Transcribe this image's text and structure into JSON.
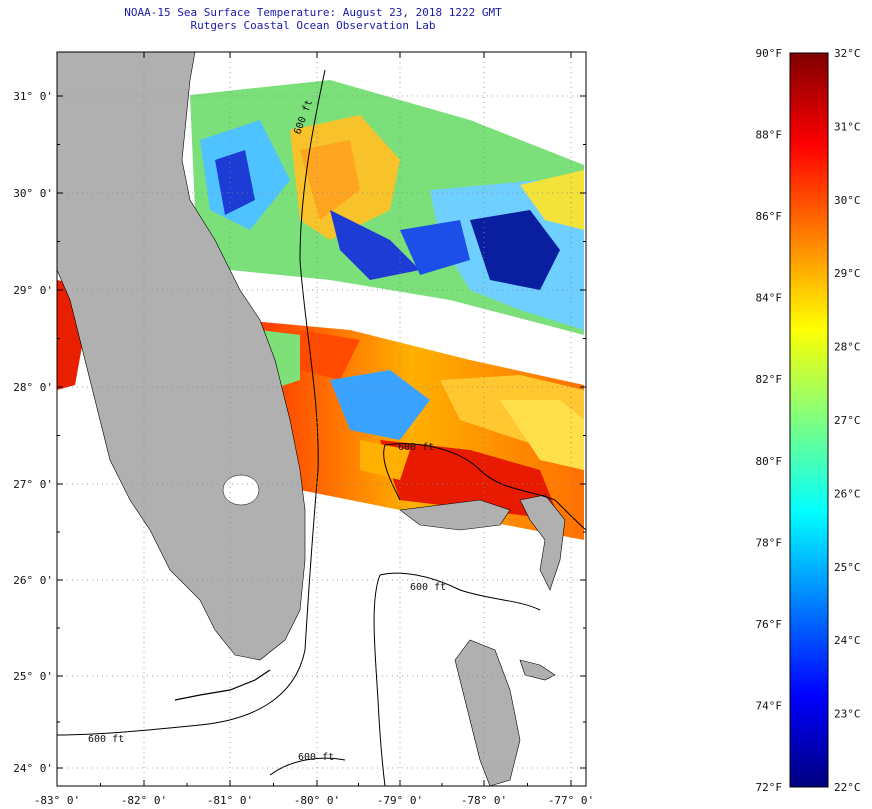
{
  "header": {
    "title": "NOAA-15 Sea Surface Temperature:  August 23, 2018 1222 GMT",
    "subtitle": "Rutgers Coastal Ocean Observation Lab"
  },
  "map": {
    "lat_ticks": [
      "31° 0'",
      "30° 0'",
      "29° 0'",
      "28° 0'",
      "27° 0'",
      "26° 0'",
      "25° 0'",
      "24° 0'"
    ],
    "lon_ticks": [
      "-83° 0'",
      "-82° 0'",
      "-81° 0'",
      "-80° 0'",
      "-79° 0'",
      "-78° 0'",
      "-77° 0'"
    ],
    "contour_labels": [
      "600 ft",
      "600 ft",
      "600 ft",
      "600 ft",
      "600 ft"
    ],
    "colors": {
      "land": "#b0b0b0",
      "nodata": "#ffffff",
      "frame": "#000000",
      "grid": "#888888"
    }
  },
  "colorbar": {
    "fahrenheit_labels": [
      "90°F",
      "88°F",
      "86°F",
      "84°F",
      "82°F",
      "80°F",
      "78°F",
      "76°F",
      "74°F",
      "72°F"
    ],
    "celsius_labels": [
      "32°C",
      "31°C",
      "30°C",
      "29°C",
      "28°C",
      "27°C",
      "26°C",
      "25°C",
      "24°C",
      "23°C",
      "22°C"
    ],
    "range_f": [
      72,
      90
    ],
    "range_c": [
      22,
      32
    ],
    "colormap": [
      "#00007f",
      "#0000ff",
      "#007fff",
      "#00ffff",
      "#7fff7f",
      "#ffff00",
      "#ff7f00",
      "#ff0000",
      "#7f0000"
    ]
  }
}
